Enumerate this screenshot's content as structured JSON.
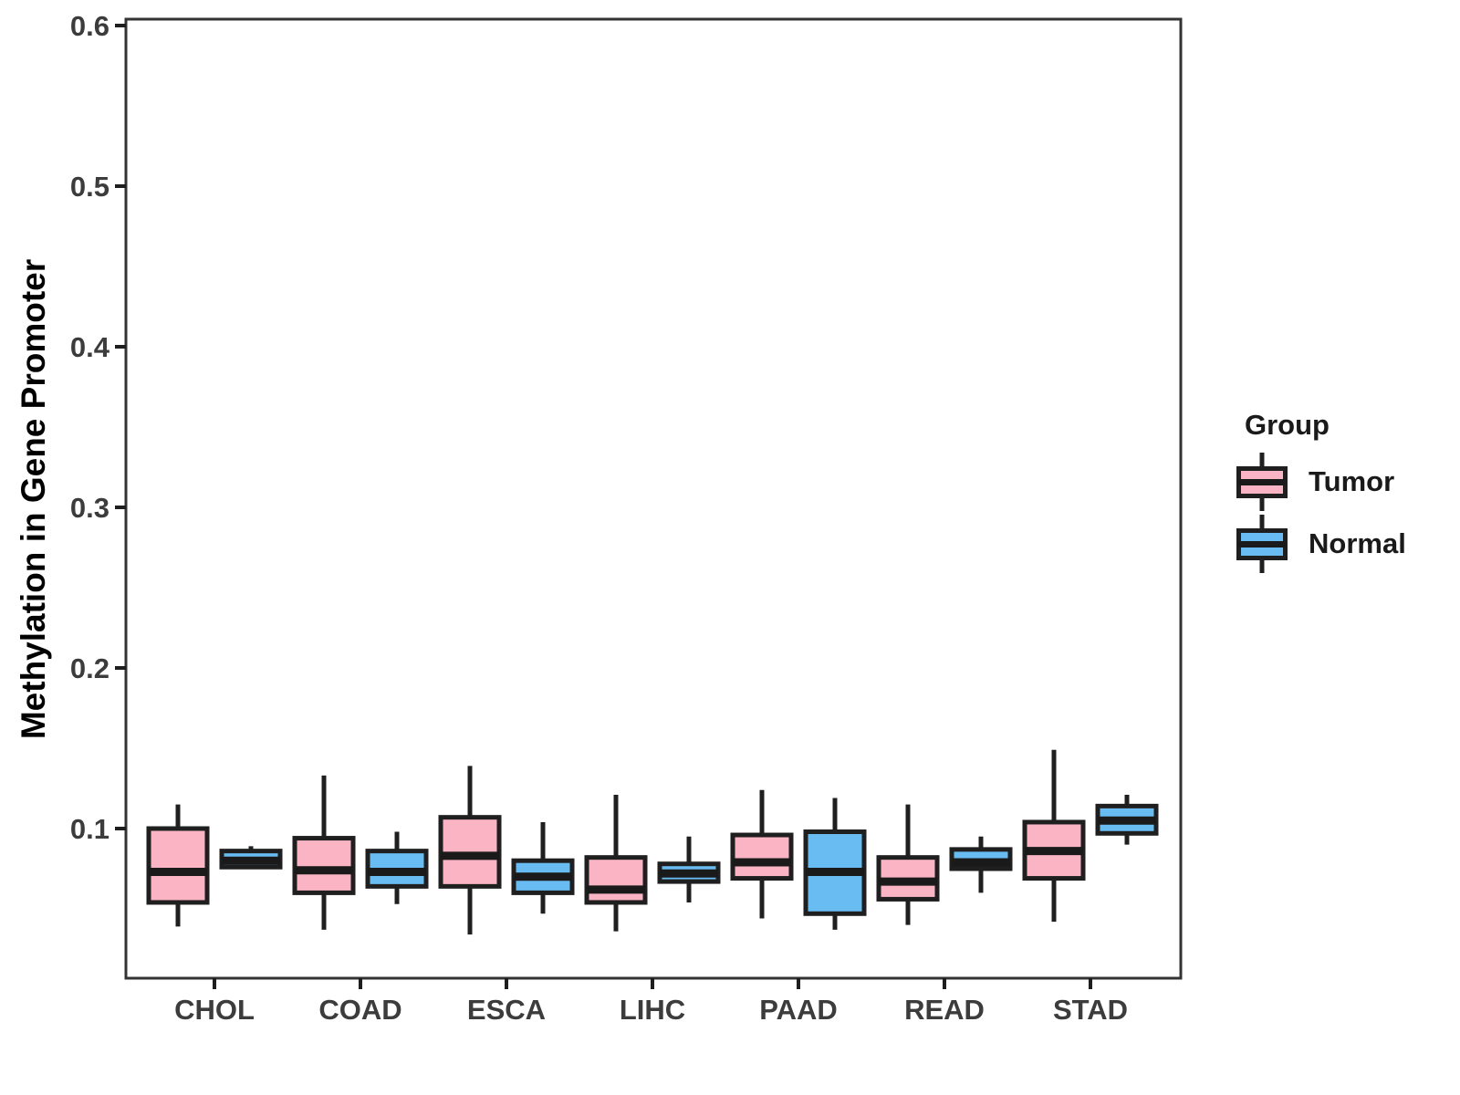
{
  "chart_data": {
    "type": "boxplot",
    "title": "",
    "xlabel": "",
    "ylabel": "Methylation in Gene Promoter",
    "ylim": [
      0.007,
      0.603
    ],
    "yticks": [
      "0.1",
      "0.2",
      "0.3",
      "0.4",
      "0.5",
      "0.6"
    ],
    "categories": [
      "CHOL",
      "COAD",
      "ESCA",
      "LIHC",
      "PAAD",
      "READ",
      "STAD"
    ],
    "grid": "off",
    "legend_position": "right",
    "groups": [
      {
        "name": "Tumor",
        "color": "#FAB4C4"
      },
      {
        "name": "Normal",
        "color": "#69BCF2"
      }
    ],
    "boxes": [
      {
        "category": "CHOL",
        "group": "Tumor",
        "min": 0.039,
        "q1": 0.054,
        "median": 0.073,
        "q3": 0.1,
        "max": 0.115
      },
      {
        "category": "CHOL",
        "group": "Normal",
        "min": 0.075,
        "q1": 0.076,
        "median": 0.08,
        "q3": 0.086,
        "max": 0.089
      },
      {
        "category": "COAD",
        "group": "Tumor",
        "min": 0.037,
        "q1": 0.06,
        "median": 0.074,
        "q3": 0.094,
        "max": 0.133
      },
      {
        "category": "COAD",
        "group": "Normal",
        "min": 0.053,
        "q1": 0.064,
        "median": 0.073,
        "q3": 0.086,
        "max": 0.098
      },
      {
        "category": "ESCA",
        "group": "Tumor",
        "min": 0.034,
        "q1": 0.064,
        "median": 0.083,
        "q3": 0.107,
        "max": 0.139
      },
      {
        "category": "ESCA",
        "group": "Normal",
        "min": 0.047,
        "q1": 0.06,
        "median": 0.07,
        "q3": 0.08,
        "max": 0.104
      },
      {
        "category": "LIHC",
        "group": "Tumor",
        "min": 0.036,
        "q1": 0.054,
        "median": 0.062,
        "q3": 0.082,
        "max": 0.121
      },
      {
        "category": "LIHC",
        "group": "Normal",
        "min": 0.054,
        "q1": 0.067,
        "median": 0.072,
        "q3": 0.078,
        "max": 0.095
      },
      {
        "category": "PAAD",
        "group": "Tumor",
        "min": 0.044,
        "q1": 0.069,
        "median": 0.079,
        "q3": 0.096,
        "max": 0.124
      },
      {
        "category": "PAAD",
        "group": "Normal",
        "min": 0.037,
        "q1": 0.047,
        "median": 0.073,
        "q3": 0.098,
        "max": 0.119
      },
      {
        "category": "READ",
        "group": "Tumor",
        "min": 0.04,
        "q1": 0.056,
        "median": 0.067,
        "q3": 0.082,
        "max": 0.115
      },
      {
        "category": "READ",
        "group": "Normal",
        "min": 0.06,
        "q1": 0.075,
        "median": 0.079,
        "q3": 0.087,
        "max": 0.095
      },
      {
        "category": "STAD",
        "group": "Tumor",
        "min": 0.042,
        "q1": 0.069,
        "median": 0.086,
        "q3": 0.104,
        "max": 0.149
      },
      {
        "category": "STAD",
        "group": "Normal",
        "min": 0.09,
        "q1": 0.097,
        "median": 0.105,
        "q3": 0.114,
        "max": 0.121
      }
    ],
    "colors": {
      "box_border": "#1f1f1f",
      "median_line": "#1a1a1a",
      "panel_border": "#333333",
      "tick_mark": "#1e1e1e",
      "tick_text": "#3c3c3c"
    }
  },
  "legend": {
    "title": "Group",
    "entries": [
      {
        "label": "Tumor",
        "color": "#FAB4C4"
      },
      {
        "label": "Normal",
        "color": "#69BCF2"
      }
    ]
  }
}
